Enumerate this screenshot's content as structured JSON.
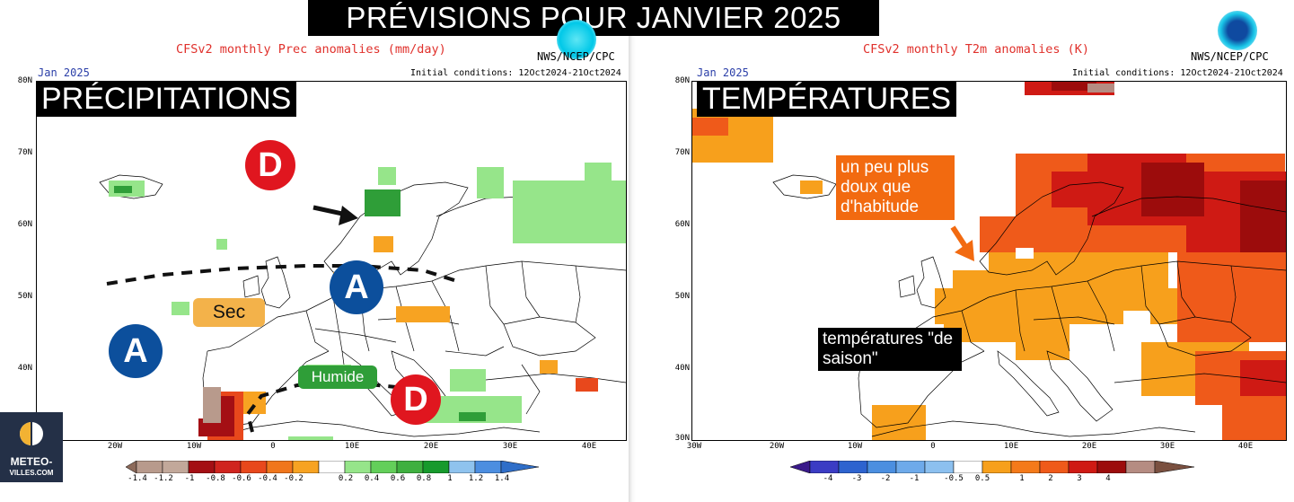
{
  "banner": "PRÉVISIONS POUR JANVIER 2025",
  "left": {
    "title": "CFSv2 monthly Prec anomalies (mm/day)",
    "agency": "NWS/NCEP/CPC",
    "month": "Jan 2025",
    "init": "Initial conditions: 12Oct2024-21Oct2024",
    "tag": "PRÉCIPITATIONS",
    "lat_labels": [
      "80N",
      "70N",
      "60N",
      "50N",
      "40N"
    ],
    "lon_labels": [
      "20W",
      "10W",
      "0",
      "10E",
      "20E",
      "30E",
      "40E"
    ],
    "colorbar_labels": [
      "-1.4",
      "-1.2",
      "-1",
      "-0.8",
      "-0.6",
      "-0.4",
      "-0.2",
      "0.2",
      "0.4",
      "0.6",
      "0.8",
      "1",
      "1.2",
      "1.4"
    ],
    "colorbar_colors": [
      "#8c6a5a",
      "#b89a8c",
      "#a40f14",
      "#d0241e",
      "#e8481c",
      "#f0761c",
      "#f7a322",
      "#ffffff",
      "#96e58a",
      "#63cf5a",
      "#3fb040",
      "#179a2c",
      "#8fc3ee",
      "#4c8ee0",
      "#2f6ec8"
    ],
    "labels": {
      "sec": "Sec",
      "humide": "Humide",
      "high": "A",
      "low": "D"
    }
  },
  "right": {
    "title": "CFSv2 monthly T2m anomalies (K)",
    "agency": "NWS/NCEP/CPC",
    "month": "Jan 2025",
    "init": "Initial conditions: 12Oct2024-21Oct2024",
    "tag": "TEMPÉRATURES",
    "lat_labels": [
      "80N",
      "70N",
      "60N",
      "50N",
      "40N",
      "30N"
    ],
    "lon_labels": [
      "30W",
      "20W",
      "10W",
      "0",
      "10E",
      "20E",
      "30E",
      "40E"
    ],
    "colorbar_labels": [
      "-4",
      "-3",
      "-2",
      "-1",
      "-0.5",
      "0.5",
      "1",
      "2",
      "3",
      "4"
    ],
    "colorbar_colors": [
      "#3a1a8a",
      "#3b3cc4",
      "#2d63cf",
      "#4b8fe0",
      "#8cc0ef",
      "#ffffff",
      "#f7a01c",
      "#ef5a1a",
      "#cf1a14",
      "#9c0c0c",
      "#b58c82",
      "#7a5040"
    ],
    "note_warm": "un peu plus doux que d'habitude",
    "note_season": "températures \"de saison\""
  },
  "logo": {
    "line1": "METEO-",
    "line2": "VILLES.COM"
  },
  "noaa_logo": "NOAA",
  "colors": {
    "anom_orange": "#f7a322",
    "anom_red": "#e8481c",
    "anom_darkred": "#a40f14",
    "green": "#96e58a",
    "darkgreen": "#2f9e38"
  }
}
